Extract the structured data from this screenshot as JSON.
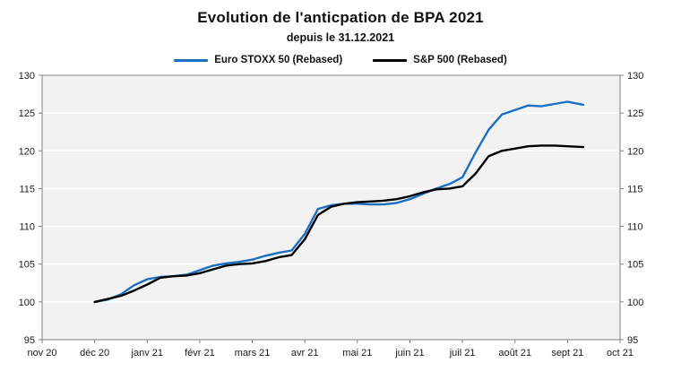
{
  "chart_data": {
    "type": "line",
    "title": "Evolution de l'anticpation de BPA 2021",
    "subtitle": "depuis le 31.12.2021",
    "legend_position": "top",
    "plot_bg": "#f2f2f2",
    "grid_color": "#ffffff",
    "axis_color": "#808080",
    "grid": "horizontal gridlines every 5 units, white on light-gray plot area",
    "xlim": [
      0,
      11
    ],
    "ylim": [
      95,
      130
    ],
    "y_ticks": [
      95,
      100,
      105,
      110,
      115,
      120,
      125,
      130
    ],
    "x_tick_labels": [
      "nov 20",
      "déc 20",
      "janv 21",
      "févr 21",
      "mars 21",
      "avr 21",
      "mai 21",
      "juin 21",
      "juil 21",
      "août 21",
      "sept 21",
      "oct 21"
    ],
    "x_unit": "months from nov 20 tick (déc 20 = 1, janv 21 = 2, ...)",
    "x": [
      1.0,
      1.25,
      1.5,
      1.75,
      2.0,
      2.25,
      2.5,
      2.75,
      3.0,
      3.25,
      3.5,
      3.75,
      4.0,
      4.25,
      4.5,
      4.75,
      5.0,
      5.25,
      5.5,
      5.75,
      6.0,
      6.25,
      6.5,
      6.75,
      7.0,
      7.25,
      7.5,
      7.75,
      8.0,
      8.25,
      8.5,
      8.75,
      9.0,
      9.25,
      9.5,
      9.75,
      10.0,
      10.3
    ],
    "series": [
      {
        "name": "Euro STOXX 50 (Rebased)",
        "color": "#1a6fc4",
        "values": [
          100.0,
          100.3,
          101.0,
          102.2,
          103.0,
          103.3,
          103.4,
          103.6,
          104.2,
          104.8,
          105.1,
          105.3,
          105.6,
          106.1,
          106.5,
          106.8,
          109.0,
          112.3,
          112.8,
          113.0,
          113.0,
          112.9,
          112.9,
          113.1,
          113.6,
          114.3,
          115.0,
          115.6,
          116.5,
          119.8,
          122.8,
          124.8,
          125.4,
          126.0,
          125.9,
          126.2,
          126.5,
          126.1
        ]
      },
      {
        "name": "S&P 500 (Rebased)",
        "color": "#000000",
        "values": [
          100.0,
          100.4,
          100.8,
          101.5,
          102.3,
          103.2,
          103.4,
          103.5,
          103.8,
          104.3,
          104.8,
          105.0,
          105.1,
          105.4,
          105.9,
          106.2,
          108.3,
          111.5,
          112.6,
          113.0,
          113.2,
          113.3,
          113.4,
          113.6,
          114.0,
          114.5,
          114.9,
          115.0,
          115.3,
          117.0,
          119.3,
          120.0,
          120.3,
          120.6,
          120.7,
          120.7,
          120.6,
          120.5
        ]
      }
    ]
  }
}
